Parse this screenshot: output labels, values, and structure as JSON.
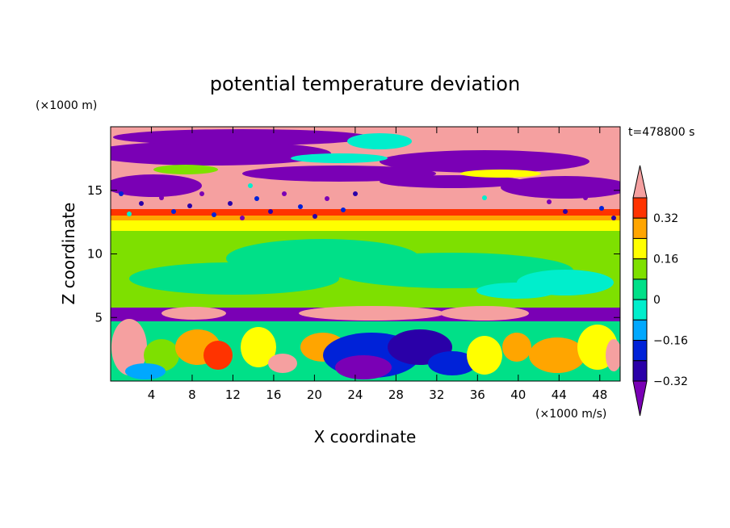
{
  "chart_data": {
    "type": "heatmap",
    "title": "potential temperature deviation",
    "xlabel": "X coordinate",
    "ylabel": "Z coordinate",
    "x_units": "(×1000 m/s)",
    "y_units": "(×1000 m)",
    "time_label": "t=478800 s",
    "xlim": [
      0,
      50
    ],
    "ylim": [
      0,
      20
    ],
    "x_ticks": [
      4,
      8,
      12,
      16,
      20,
      24,
      28,
      32,
      36,
      40,
      44,
      48
    ],
    "y_ticks": [
      5,
      10,
      15
    ],
    "colorbar": {
      "levels": [
        -0.4,
        -0.32,
        -0.24,
        -0.16,
        -0.08,
        0,
        0.08,
        0.16,
        0.24,
        0.32,
        0.4
      ],
      "tick_labels": [
        "0.32",
        "0.16",
        "0",
        "−0.16",
        "−0.32"
      ],
      "colors": [
        "#7a00b5",
        "#2a00a8",
        "#0022d8",
        "#00a8ff",
        "#00eecc",
        "#00e088",
        "#7ee000",
        "#ffff00",
        "#ffa500",
        "#ff3300",
        "#f5a0a0"
      ]
    }
  },
  "colors": {
    "violet": "#7a00b5",
    "navy": "#2a00a8",
    "blue": "#0022d8",
    "sky": "#00a8ff",
    "cyan": "#00eecc",
    "mint": "#00e088",
    "lime": "#7ee000",
    "yellow": "#ffff00",
    "orange": "#ffa500",
    "red": "#ff3300",
    "pink": "#f5a0a0"
  }
}
